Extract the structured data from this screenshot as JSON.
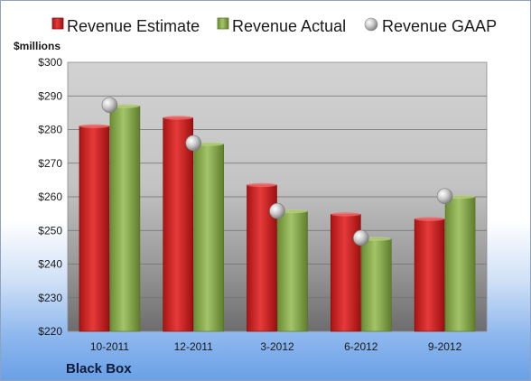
{
  "chart_data": {
    "type": "bar",
    "title": "",
    "ylabel": "$millions",
    "xlabel": "",
    "company": "Black Box",
    "categories": [
      "10-2011",
      "12-2011",
      "3-2012",
      "6-2012",
      "9-2012"
    ],
    "ylim": [
      220,
      300
    ],
    "yticks": [
      220,
      230,
      240,
      250,
      260,
      270,
      280,
      290,
      300
    ],
    "ytick_labels": [
      "$220",
      "$230",
      "$240",
      "$250",
      "$260",
      "$270",
      "$280",
      "$290",
      "$300"
    ],
    "grid": true,
    "legend_placement": "top",
    "series": [
      {
        "name": "Revenue Estimate",
        "kind": "bar",
        "color": "#d42a2a",
        "values": [
          281,
          283.5,
          263.5,
          254.8,
          253.4
        ]
      },
      {
        "name": "Revenue Actual",
        "kind": "bar",
        "color": "#8aac4a",
        "values": [
          287,
          275.7,
          255.7,
          247.5,
          260
        ]
      },
      {
        "name": "Revenue GAAP",
        "kind": "marker",
        "color": "#b0b0b0",
        "values": [
          287.3,
          276,
          255.8,
          247.8,
          260.2
        ]
      }
    ]
  }
}
